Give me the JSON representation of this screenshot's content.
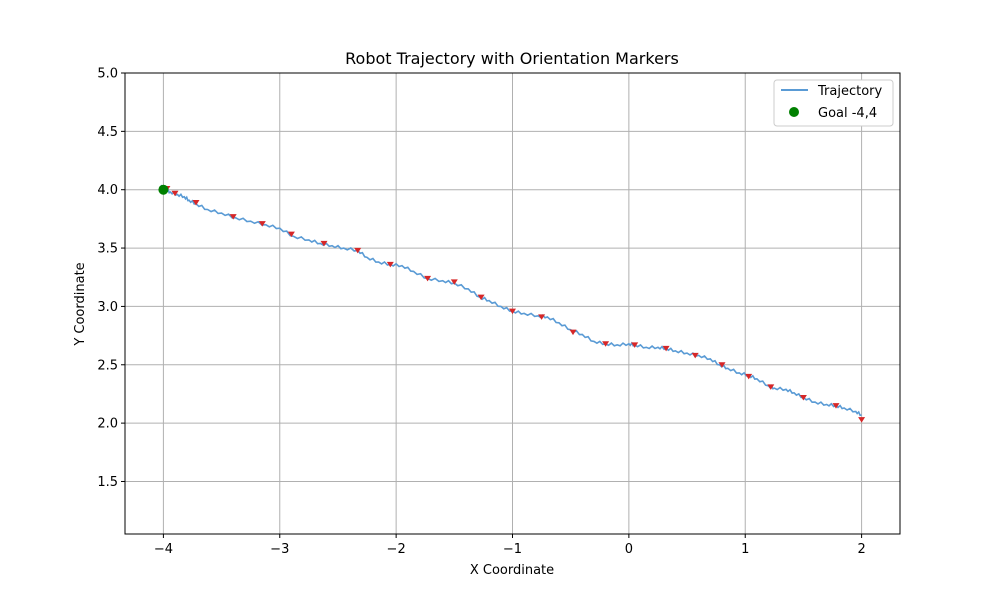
{
  "chart_data": {
    "type": "line",
    "title": "Robot Trajectory with Orientation Markers",
    "xlabel": "X Coordinate",
    "ylabel": "Y Coordinate",
    "xlim": [
      -4.33,
      2.33
    ],
    "ylim": [
      1.05,
      5.0
    ],
    "x_ticks": [
      -4,
      -3,
      -2,
      -1,
      0,
      1,
      2
    ],
    "x_tick_labels": [
      "−4",
      "−3",
      "−2",
      "−1",
      "0",
      "1",
      "2"
    ],
    "y_ticks": [
      1.5,
      2.0,
      2.5,
      3.0,
      3.5,
      4.0,
      4.5,
      5.0
    ],
    "y_tick_labels": [
      "1.5",
      "2.0",
      "2.5",
      "3.0",
      "3.5",
      "4.0",
      "4.5",
      "5.0"
    ],
    "grid": true,
    "legend": "top-right",
    "series": [
      {
        "name": "Trajectory",
        "color": "#5a9bd5",
        "x": [
          2.0,
          1.95,
          1.85,
          1.78,
          1.7,
          1.6,
          1.5,
          1.42,
          1.35,
          1.25,
          1.2,
          1.1,
          1.03,
          0.95,
          0.85,
          0.78,
          0.7,
          0.6,
          0.5,
          0.4,
          0.32,
          0.25,
          0.15,
          0.05,
          0.0,
          -0.1,
          -0.2,
          -0.3,
          -0.4,
          -0.5,
          -0.6,
          -0.7,
          -0.78,
          -0.9,
          -1.0,
          -1.1,
          -1.2,
          -1.28,
          -1.38,
          -1.5,
          -1.6,
          -1.73,
          -1.85,
          -1.95,
          -2.05,
          -2.15,
          -2.25,
          -2.33,
          -2.45,
          -2.55,
          -2.65,
          -2.75,
          -2.88,
          -3.0,
          -3.12,
          -3.25,
          -3.38,
          -3.5,
          -3.62,
          -3.72,
          -3.78,
          -3.82,
          -3.88,
          -3.94,
          -3.98,
          -4.02
        ],
        "y": [
          2.07,
          2.1,
          2.13,
          2.15,
          2.16,
          2.18,
          2.22,
          2.26,
          2.29,
          2.3,
          2.32,
          2.38,
          2.41,
          2.43,
          2.47,
          2.5,
          2.55,
          2.58,
          2.6,
          2.62,
          2.64,
          2.65,
          2.65,
          2.67,
          2.68,
          2.67,
          2.68,
          2.7,
          2.76,
          2.8,
          2.86,
          2.91,
          2.92,
          2.94,
          2.96,
          3.0,
          3.05,
          3.08,
          3.15,
          3.2,
          3.22,
          3.24,
          3.3,
          3.35,
          3.36,
          3.38,
          3.42,
          3.48,
          3.5,
          3.52,
          3.54,
          3.57,
          3.6,
          3.67,
          3.7,
          3.73,
          3.76,
          3.8,
          3.83,
          3.88,
          3.91,
          3.94,
          3.96,
          3.98,
          4.0,
          4.04
        ]
      },
      {
        "name": "Goal -4,4",
        "color": "#008000",
        "type": "scatter",
        "x": [
          -4.0
        ],
        "y": [
          4.0
        ]
      }
    ],
    "orientation_markers": {
      "color": "#d62728",
      "x": [
        2.0,
        1.78,
        1.5,
        1.22,
        1.03,
        0.8,
        0.57,
        0.32,
        0.05,
        -0.2,
        -0.48,
        -0.75,
        -1.0,
        -1.27,
        -1.5,
        -1.73,
        -2.05,
        -2.33,
        -2.62,
        -2.9,
        -3.15,
        -3.4,
        -3.72,
        -3.9,
        -3.97
      ],
      "y": [
        2.03,
        2.15,
        2.22,
        2.31,
        2.4,
        2.5,
        2.58,
        2.64,
        2.67,
        2.68,
        2.78,
        2.91,
        2.96,
        3.08,
        3.21,
        3.24,
        3.36,
        3.48,
        3.54,
        3.62,
        3.71,
        3.77,
        3.89,
        3.97,
        4.01
      ]
    }
  }
}
